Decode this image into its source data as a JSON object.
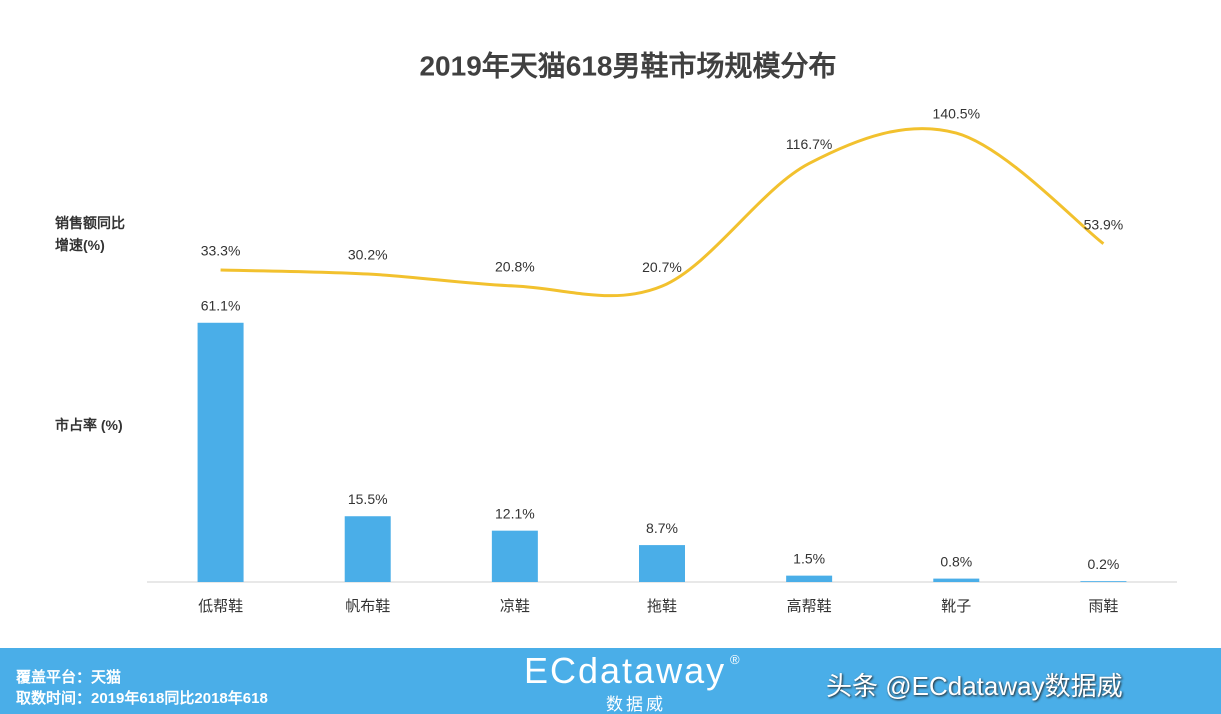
{
  "chart_data": {
    "type": "bar",
    "title": "2019年天猫618男鞋市场规模分布",
    "categories": [
      "低帮鞋",
      "帆布鞋",
      "凉鞋",
      "拖鞋",
      "高帮鞋",
      "靴子",
      "雨鞋"
    ],
    "series": [
      {
        "name": "市占率 (%)",
        "type": "bar",
        "color": "#4aaee8",
        "values": [
          61.1,
          15.5,
          12.1,
          8.7,
          1.5,
          0.8,
          0.2
        ],
        "value_labels": [
          "61.1%",
          "15.5%",
          "12.1%",
          "8.7%",
          "1.5%",
          "0.8%",
          "0.2%"
        ]
      },
      {
        "name": "销售额同比增速(%)",
        "type": "line",
        "axis": "y2",
        "color": "#f2c12e",
        "values": [
          33.3,
          30.2,
          20.8,
          20.7,
          116.7,
          140.5,
          53.9
        ],
        "value_labels": [
          "33.3%",
          "30.2%",
          "20.8%",
          "20.7%",
          "116.7%",
          "140.5%",
          "53.9%"
        ]
      }
    ],
    "ylim": [
      0,
      70
    ],
    "y2lim": [
      0,
      150
    ]
  },
  "footer": {
    "platform": "覆盖平台：天猫",
    "period": "取数时间：2019年618同比2018年618",
    "logo": "ECdataway",
    "logo_sub": "数据威",
    "logo_mark": "®",
    "watermark": "头条 @ECdataway数据威"
  }
}
